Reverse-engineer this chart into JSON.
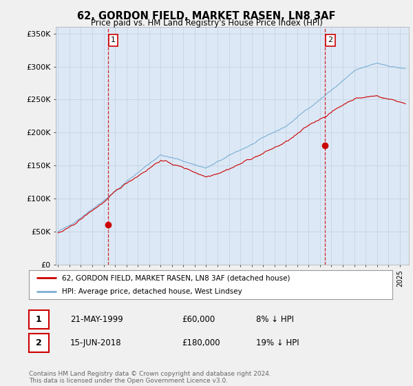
{
  "title": "62, GORDON FIELD, MARKET RASEN, LN8 3AF",
  "subtitle": "Price paid vs. HM Land Registry's House Price Index (HPI)",
  "ylabel_ticks": [
    "£0",
    "£50K",
    "£100K",
    "£150K",
    "£200K",
    "£250K",
    "£300K",
    "£350K"
  ],
  "ylim": [
    0,
    360000
  ],
  "xlim_start": 1994.8,
  "xlim_end": 2025.8,
  "marker1_x": 1999.38,
  "marker1_y": 60000,
  "marker1_label": "1",
  "marker2_x": 2018.45,
  "marker2_y": 180000,
  "marker2_label": "2",
  "legend_line1": "62, GORDON FIELD, MARKET RASEN, LN8 3AF (detached house)",
  "legend_line2": "HPI: Average price, detached house, West Lindsey",
  "table_row1": [
    "1",
    "21-MAY-1999",
    "£60,000",
    "8% ↓ HPI"
  ],
  "table_row2": [
    "2",
    "15-JUN-2018",
    "£180,000",
    "19% ↓ HPI"
  ],
  "footer": "Contains HM Land Registry data © Crown copyright and database right 2024.\nThis data is licensed under the Open Government Licence v3.0.",
  "color_red": "#cc0000",
  "color_blue": "#7bafd4",
  "color_dashed": "#cc0000",
  "plot_bg": "#dce8f5",
  "background_color": "#f0f0f0"
}
